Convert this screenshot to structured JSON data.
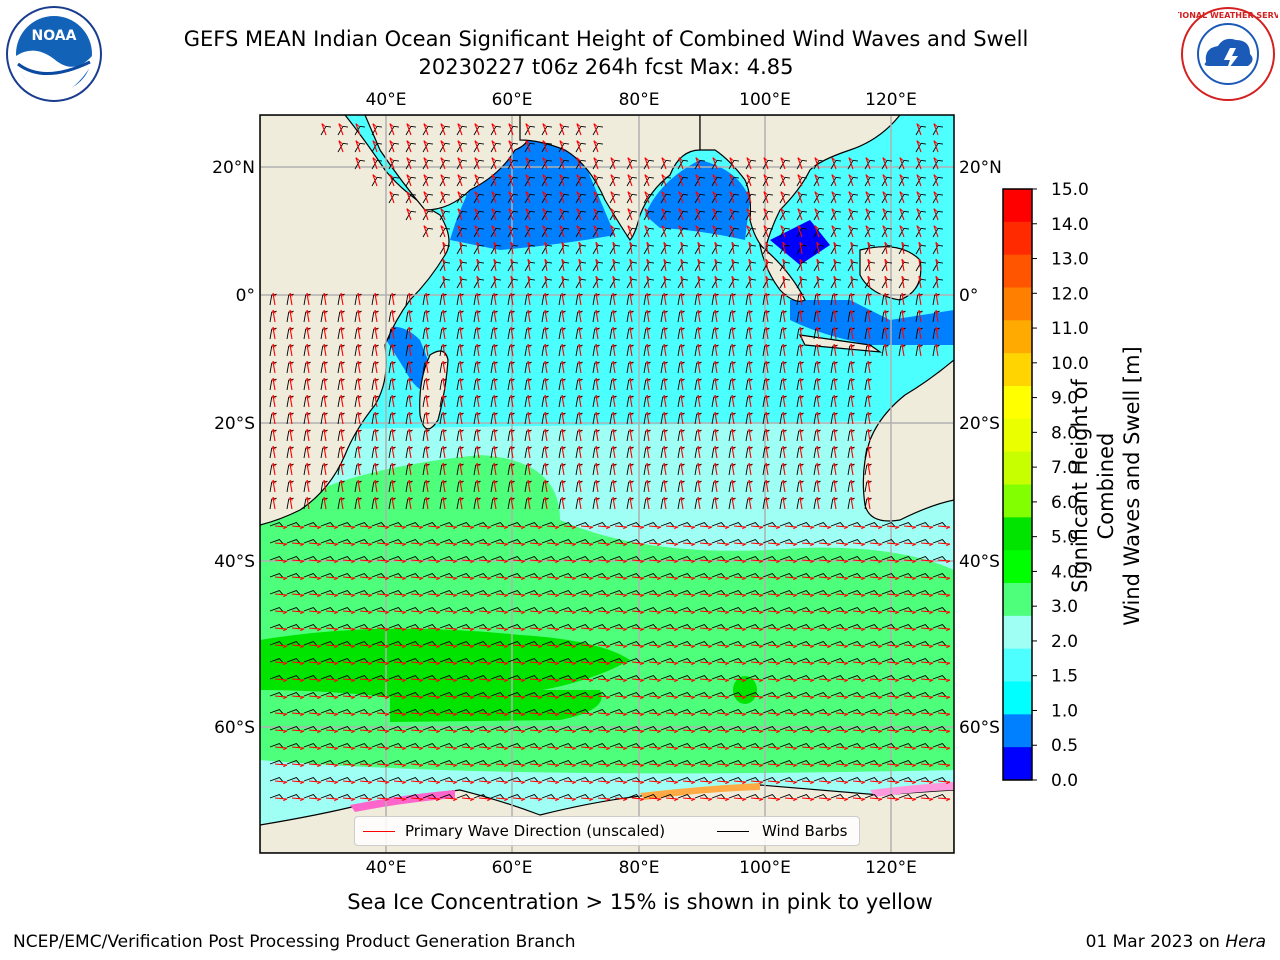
{
  "title": {
    "line1": "GEFS MEAN Indian Ocean Significant Height of Combined Wind Waves and Swell",
    "line2": "20230227 t06z 264h fcst   Max: 4.85"
  },
  "logos": {
    "left": {
      "text": "NOAA",
      "icon": "noaa-logo"
    },
    "right": {
      "text": "NATIONAL WEATHER SERVICE",
      "icon": "nws-logo"
    }
  },
  "map": {
    "lon_ticks_top": [
      "40°E",
      "60°E",
      "80°E",
      "100°E",
      "120°E"
    ],
    "lon_ticks_bottom": [
      "40°E",
      "60°E",
      "80°E",
      "100°E",
      "120°E"
    ],
    "lat_ticks_left": [
      "20°N",
      "0°",
      "20°S",
      "40°S",
      "60°S"
    ],
    "lat_ticks_right": [
      "20°N",
      "0°",
      "20°S",
      "40°S",
      "60°S"
    ],
    "extent": {
      "lon": [
        20,
        130
      ],
      "lat": [
        -76,
        28
      ]
    },
    "colors": {
      "land": "#efecdc",
      "grid": "#b0b0b0",
      "wave_arrow": "#ff0000",
      "wind_barb": "#000000"
    }
  },
  "legend": {
    "wave": "Primary Wave Direction (unscaled)",
    "barbs": "Wind Barbs"
  },
  "colorbar": {
    "title_line1": "Significant Height of Combined",
    "title_line2": "Wind Waves and Swell [m]",
    "ticks": [
      "15.0",
      "14.0",
      "13.0",
      "12.0",
      "11.0",
      "10.0",
      "9.0",
      "8.0",
      "7.0",
      "6.0",
      "5.0",
      "4.0",
      "3.0",
      "2.0",
      "1.5",
      "1.0",
      "0.5",
      "0.0"
    ],
    "colors": [
      "#ff0000",
      "#ff2a00",
      "#ff5500",
      "#ff7f00",
      "#ffaa00",
      "#ffd400",
      "#ffff00",
      "#eaff00",
      "#c8ff00",
      "#82ff00",
      "#00e400",
      "#00ff00",
      "#4dff7a",
      "#9ffff5",
      "#4dffff",
      "#00ffff",
      "#0080ff",
      "#0000ff"
    ]
  },
  "caption": "Sea Ice Concentration > 15% is shown in pink to yellow",
  "footer": {
    "left": "NCEP/EMC/Verification Post Processing Product Generation Branch",
    "right_prefix": "01 Mar 2023 on ",
    "right_italic": "Hera"
  }
}
